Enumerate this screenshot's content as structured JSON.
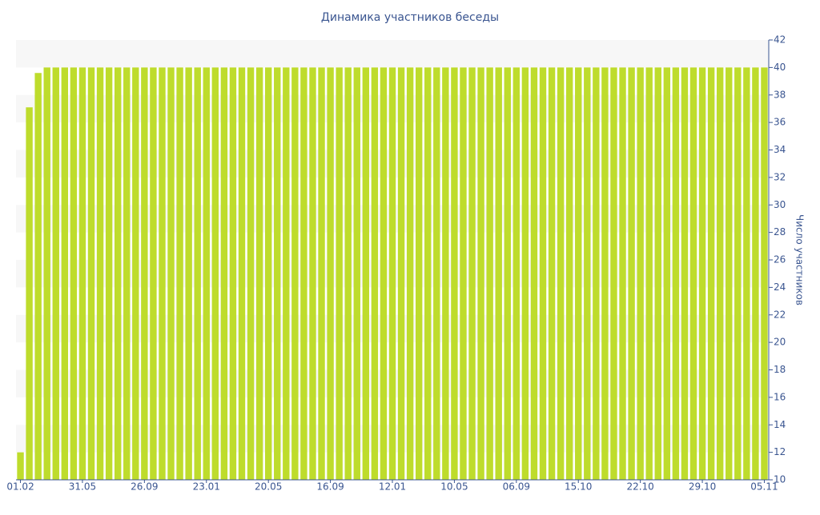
{
  "chart_data": {
    "type": "bar",
    "title": "Динамика участников беседы",
    "y_axis_label": "Число участников",
    "categories": [
      "01.02",
      null,
      null,
      null,
      null,
      null,
      null,
      "31.05",
      null,
      null,
      null,
      null,
      null,
      null,
      "26.09",
      null,
      null,
      null,
      null,
      null,
      null,
      "23.01",
      null,
      null,
      null,
      null,
      null,
      null,
      "20.05",
      null,
      null,
      null,
      null,
      null,
      null,
      "16.09",
      null,
      null,
      null,
      null,
      null,
      null,
      "12.01",
      null,
      null,
      null,
      null,
      null,
      null,
      "10.05",
      null,
      null,
      null,
      null,
      null,
      null,
      "06.09",
      null,
      null,
      null,
      null,
      null,
      null,
      "15.10",
      null,
      null,
      null,
      null,
      null,
      null,
      "22.10",
      null,
      null,
      null,
      null,
      null,
      null,
      "29.10",
      null,
      null,
      null,
      null,
      null,
      null,
      "05.11"
    ],
    "values": [
      12,
      37.1,
      39.6,
      40,
      40,
      40,
      40,
      40,
      40,
      40,
      40,
      40,
      40,
      40,
      40,
      40,
      40,
      40,
      40,
      40,
      40,
      40,
      40,
      40,
      40,
      40,
      40,
      40,
      40,
      40,
      40,
      40,
      40,
      40,
      40,
      40,
      40,
      40,
      40,
      40,
      40,
      40,
      40,
      40,
      40,
      40,
      40,
      40,
      40,
      40,
      40,
      40,
      40,
      40,
      40,
      40,
      40,
      40,
      40,
      40,
      40,
      40,
      40,
      40,
      40,
      40,
      40,
      40,
      40,
      40,
      40,
      40,
      40,
      40,
      40,
      40,
      40,
      40,
      40,
      40,
      40,
      40,
      40,
      40,
      40
    ],
    "color": "#bedc2c",
    "ylim": [
      10,
      42
    ],
    "yticks": [
      10,
      12,
      14,
      16,
      18,
      20,
      22,
      24,
      26,
      28,
      30,
      32,
      34,
      36,
      38,
      40,
      42
    ],
    "grid": true,
    "y_axis_side": "right"
  }
}
